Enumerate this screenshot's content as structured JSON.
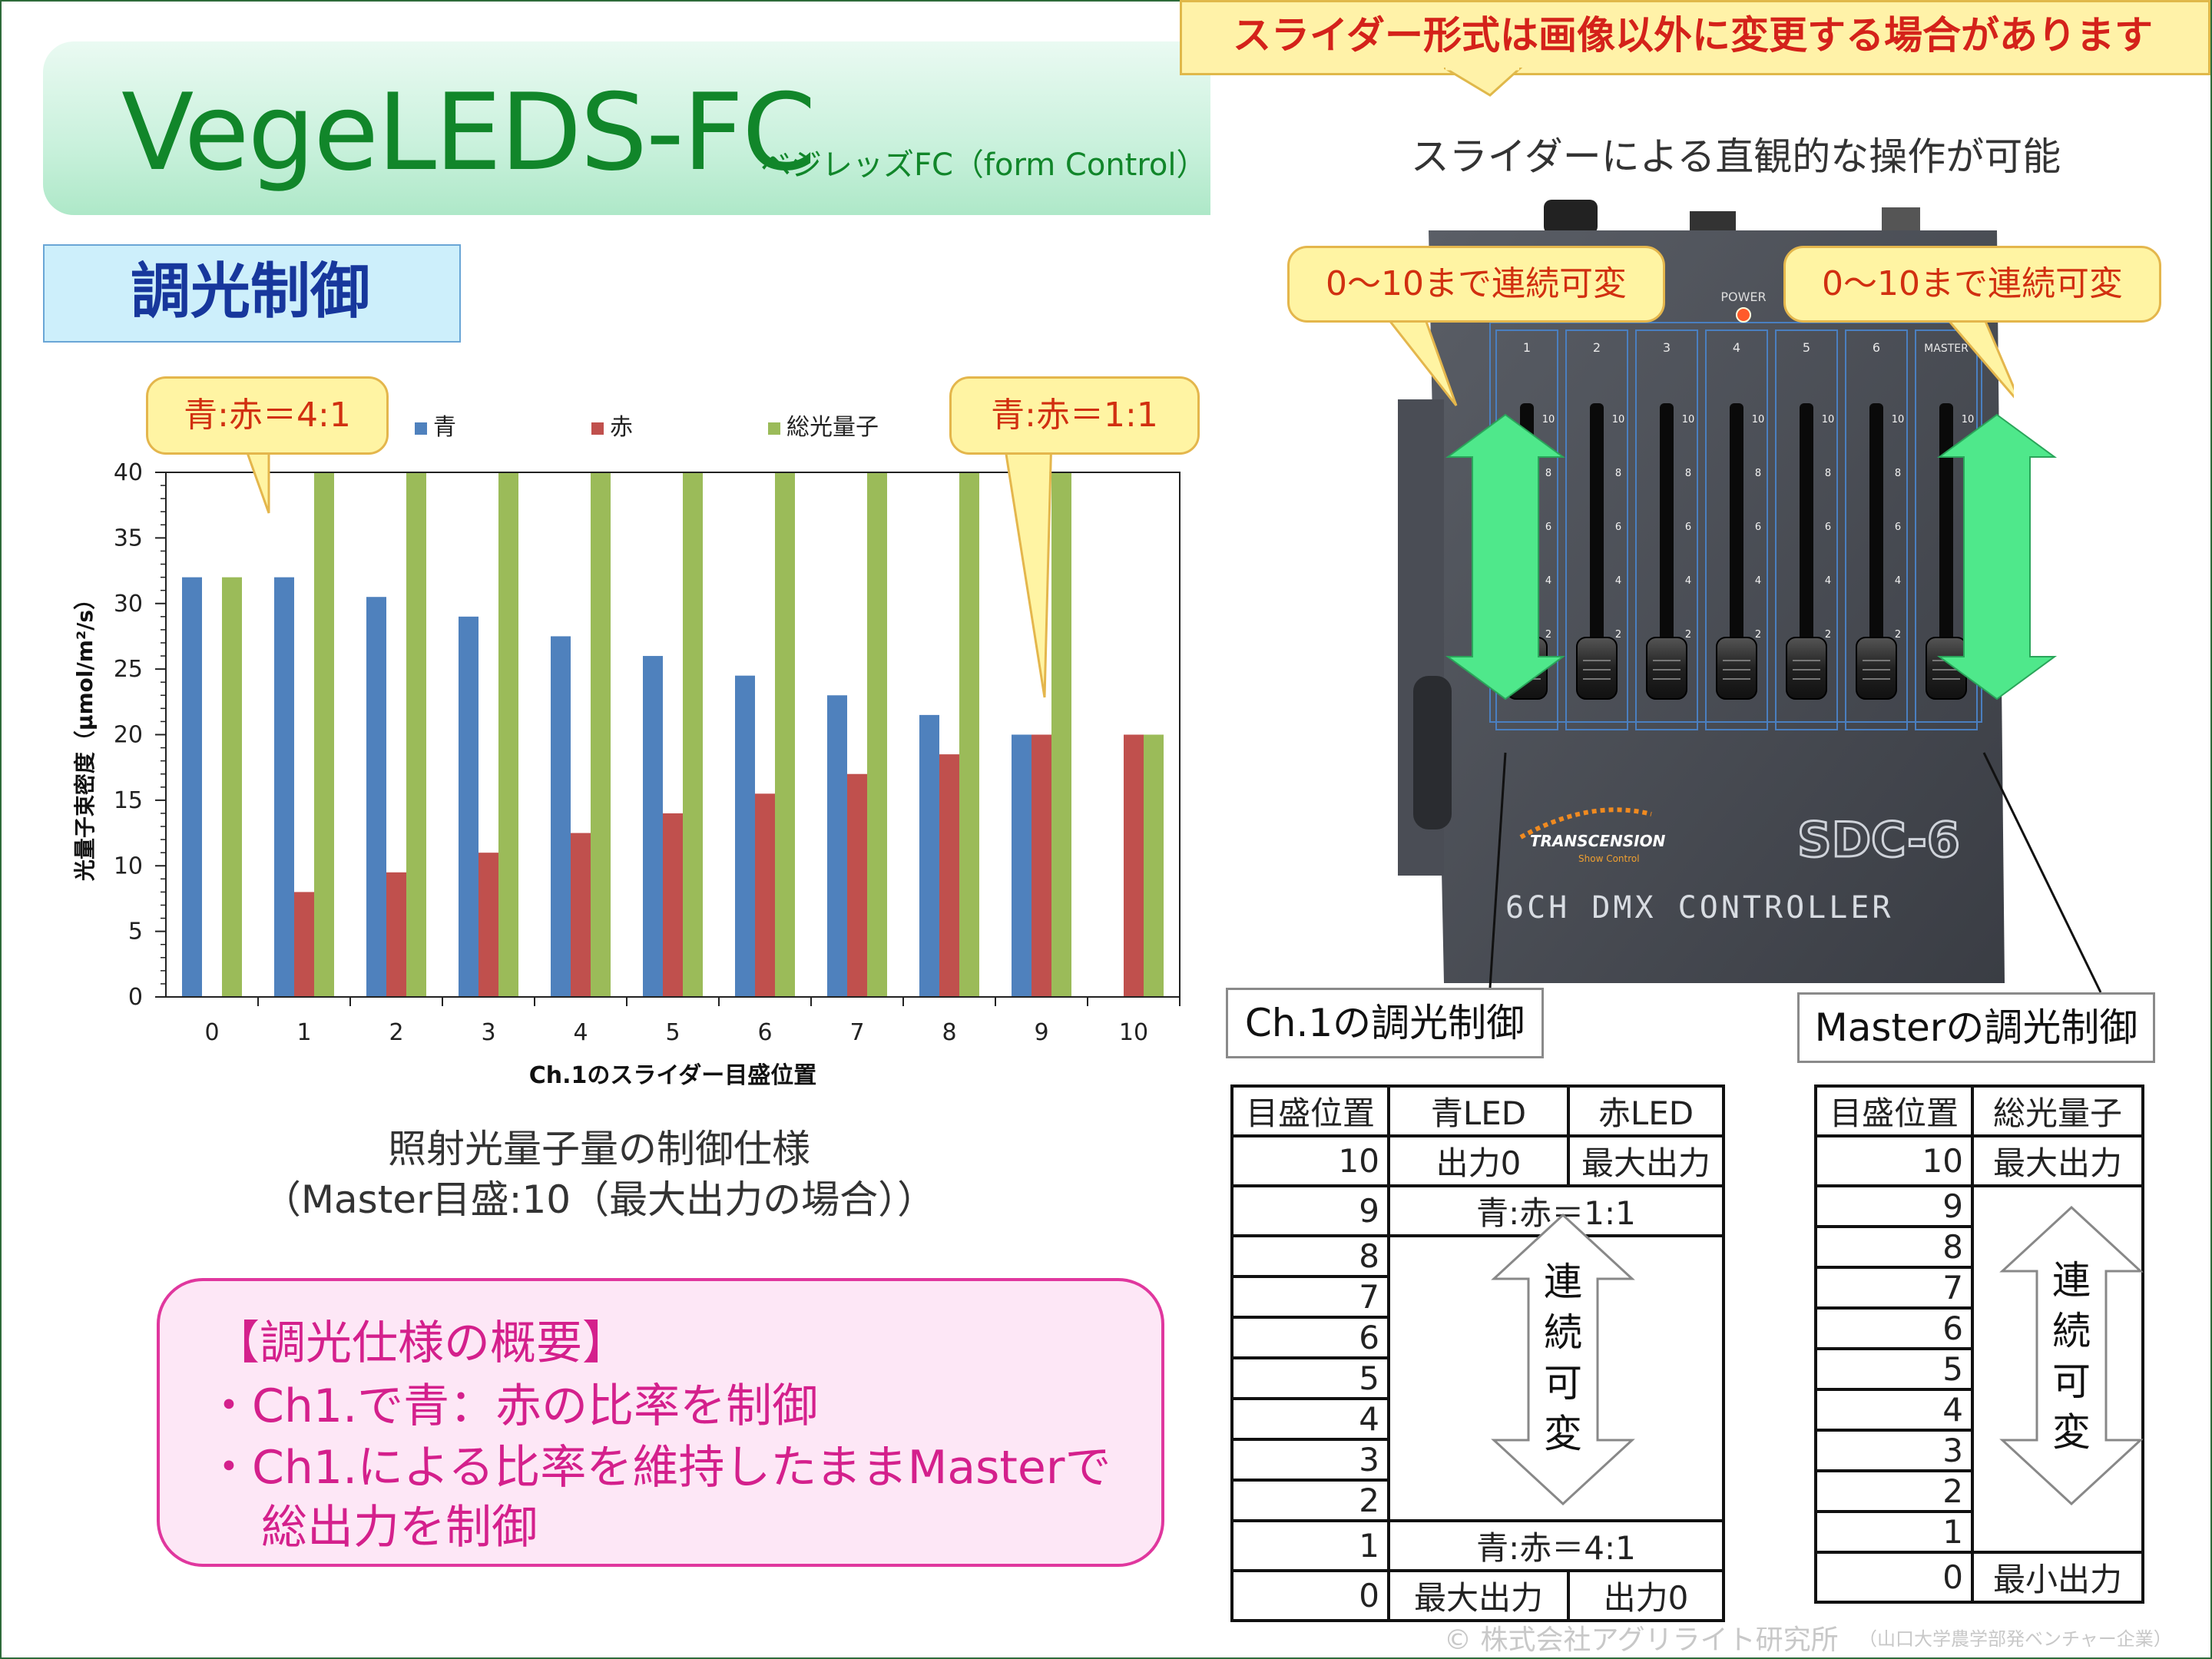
{
  "header": {
    "title": "VegeLEDS-FC",
    "subtitle": "ベジレッズFC（form Control）",
    "section": "調光制御"
  },
  "notice": "スライダー形式は画像以外に変更する場合があります",
  "slider_caption": "スライダーによる直観的な操作が可能",
  "callouts": {
    "left_ratio": "青:赤＝4:1",
    "right_ratio": "青:赤＝1:1",
    "range_left": "0～10まで連続可変",
    "range_right": "0～10まで連続可変"
  },
  "chart_data": {
    "type": "bar",
    "categories": [
      "0",
      "1",
      "2",
      "3",
      "4",
      "5",
      "6",
      "7",
      "8",
      "9",
      "10"
    ],
    "series": [
      {
        "name": "青",
        "color": "#4f81bd",
        "values": [
          32,
          32,
          30.5,
          29,
          27.5,
          26,
          24.5,
          23,
          21.5,
          20,
          0
        ]
      },
      {
        "name": "赤",
        "color": "#c0504d",
        "values": [
          0,
          8,
          9.5,
          11,
          12.5,
          14,
          15.5,
          17,
          18.5,
          20,
          20
        ]
      },
      {
        "name": "総光量子",
        "color": "#9bbb59",
        "values": [
          32,
          40,
          40,
          40,
          40,
          40,
          40,
          40,
          40,
          40,
          20
        ]
      }
    ],
    "xlabel": "Ch.1のスライダー目盛位置",
    "ylabel": "光量子束密度（μmol/m²/s）",
    "ylim": [
      0,
      40
    ],
    "yticks": [
      0,
      5,
      10,
      15,
      20,
      25,
      30,
      35,
      40
    ],
    "legend_position": "top",
    "grid": false
  },
  "chart_caption": {
    "line1": "照射光量子量の制御仕様",
    "line2": "（Master目盛:10（最大出力の場合））"
  },
  "summary": {
    "heading": "【調光仕様の概要】",
    "line1": "・Ch1.で青：赤の比率を制御",
    "line2": "・Ch1.による比率を維持したままMasterで",
    "line3": "総出力を制御"
  },
  "device": {
    "power_label": "POWER",
    "channels": [
      "1",
      "2",
      "3",
      "4",
      "5",
      "6",
      "MASTER"
    ],
    "scale_marks": [
      "10",
      "8",
      "6",
      "4",
      "2"
    ],
    "brand": "TRANSCENSION",
    "brand_tagline": "Show Control",
    "model": "SDC-6",
    "model_desc": "6CH DMX CONTROLLER",
    "label_ch1": "Ch.1の調光制御",
    "label_master": "Masterの調光制御"
  },
  "table_ch1": {
    "headers": [
      "目盛位置",
      "青LED",
      "赤LED"
    ],
    "row10": {
      "pos": "10",
      "blue": "出力0",
      "red": "最大出力"
    },
    "row9": {
      "pos": "9",
      "text": "青:赤＝1:1"
    },
    "middle_positions": [
      "8",
      "7",
      "6",
      "5",
      "4",
      "3",
      "2"
    ],
    "row1": {
      "pos": "1",
      "text": "青:赤＝4:1"
    },
    "row0": {
      "pos": "0",
      "blue": "最大出力",
      "red": "出力0"
    },
    "arrow_text": [
      "連",
      "続",
      "可",
      "変"
    ]
  },
  "table_master": {
    "headers": [
      "目盛位置",
      "総光量子"
    ],
    "row10": {
      "pos": "10",
      "value": "最大出力"
    },
    "middle_positions": [
      "9",
      "8",
      "7",
      "6",
      "5",
      "4",
      "3",
      "2",
      "1"
    ],
    "row0": {
      "pos": "0",
      "value": "最小出力"
    },
    "arrow_text": [
      "連",
      "続",
      "可",
      "変"
    ]
  },
  "footer": {
    "copyright": "© 株式会社アグリライト研究所",
    "note": "（山口大学農学部発ベンチャー企業）"
  }
}
